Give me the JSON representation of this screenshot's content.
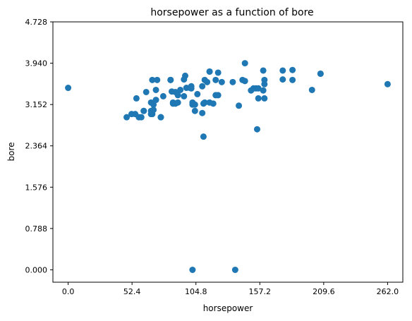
{
  "chart_data": {
    "type": "scatter",
    "title": "horsepower as a function of bore",
    "xlabel": "horsepower",
    "ylabel": "bore",
    "xlim": [
      -12.5,
      274.5
    ],
    "ylim": [
      -0.236,
      4.728
    ],
    "x_ticks": [
      {
        "value": 0.0,
        "label": "0.0"
      },
      {
        "value": 52.4,
        "label": "52.4"
      },
      {
        "value": 104.8,
        "label": "104.8"
      },
      {
        "value": 157.2,
        "label": "157.2"
      },
      {
        "value": 209.6,
        "label": "209.6"
      },
      {
        "value": 262.0,
        "label": "262.0"
      }
    ],
    "y_ticks": [
      {
        "value": 0.0,
        "label": "0.000"
      },
      {
        "value": 0.788,
        "label": "0.788"
      },
      {
        "value": 1.576,
        "label": "1.576"
      },
      {
        "value": 2.364,
        "label": "2.364"
      },
      {
        "value": 3.152,
        "label": "3.152"
      },
      {
        "value": 3.94,
        "label": "3.940"
      },
      {
        "value": 4.728,
        "label": "4.728"
      }
    ],
    "grid": false,
    "marker_color": "#1f77b4",
    "points": [
      [
        0,
        3.47
      ],
      [
        48,
        2.91
      ],
      [
        52,
        2.97
      ],
      [
        55,
        2.97
      ],
      [
        56,
        3.27
      ],
      [
        58,
        2.91
      ],
      [
        60,
        2.91
      ],
      [
        62,
        3.03
      ],
      [
        62,
        3.03
      ],
      [
        64,
        3.39
      ],
      [
        68,
        2.97
      ],
      [
        68,
        3.03
      ],
      [
        68,
        3.19
      ],
      [
        69,
        2.97
      ],
      [
        69,
        3.62
      ],
      [
        70,
        3.05
      ],
      [
        70,
        3.15
      ],
      [
        72,
        3.24
      ],
      [
        72,
        3.43
      ],
      [
        73,
        3.62
      ],
      [
        76,
        2.91
      ],
      [
        76,
        2.91
      ],
      [
        78,
        3.31
      ],
      [
        84,
        3.62
      ],
      [
        84,
        3.62
      ],
      [
        85,
        3.4
      ],
      [
        86,
        3.17
      ],
      [
        86,
        3.19
      ],
      [
        88,
        3.39
      ],
      [
        88,
        3.17
      ],
      [
        90,
        3.19
      ],
      [
        90,
        3.33
      ],
      [
        92,
        3.43
      ],
      [
        95,
        3.31
      ],
      [
        95,
        3.63
      ],
      [
        96,
        3.7
      ],
      [
        97,
        3.47
      ],
      [
        100,
        3.47
      ],
      [
        101,
        3.46
      ],
      [
        101,
        3.5
      ],
      [
        102,
        3.15
      ],
      [
        102,
        3.19
      ],
      [
        102,
        0.0
      ],
      [
        104,
        3.15
      ],
      [
        104,
        3.03
      ],
      [
        106,
        3.35
      ],
      [
        110,
        2.99
      ],
      [
        110,
        3.5
      ],
      [
        111,
        2.54
      ],
      [
        111,
        3.17
      ],
      [
        112,
        3.62
      ],
      [
        112,
        3.19
      ],
      [
        114,
        3.58
      ],
      [
        116,
        3.78
      ],
      [
        116,
        3.78
      ],
      [
        116,
        3.19
      ],
      [
        119,
        3.17
      ],
      [
        121,
        3.62
      ],
      [
        121,
        3.33
      ],
      [
        123,
        3.76
      ],
      [
        123,
        3.33
      ],
      [
        126,
        3.58
      ],
      [
        135,
        3.58
      ],
      [
        137,
        0.0
      ],
      [
        140,
        3.13
      ],
      [
        143,
        3.62
      ],
      [
        145,
        3.94
      ],
      [
        145,
        3.6
      ],
      [
        150,
        3.42
      ],
      [
        152,
        3.46
      ],
      [
        154,
        3.46
      ],
      [
        155,
        2.68
      ],
      [
        156,
        3.27
      ],
      [
        156,
        3.46
      ],
      [
        160,
        3.8
      ],
      [
        160,
        3.42
      ],
      [
        161,
        3.27
      ],
      [
        161,
        3.62
      ],
      [
        161,
        3.54
      ],
      [
        176,
        3.8
      ],
      [
        176,
        3.63
      ],
      [
        184,
        3.81
      ],
      [
        184,
        3.62
      ],
      [
        200,
        3.43
      ],
      [
        207,
        3.74
      ],
      [
        207,
        3.74
      ],
      [
        262,
        3.54
      ]
    ]
  }
}
